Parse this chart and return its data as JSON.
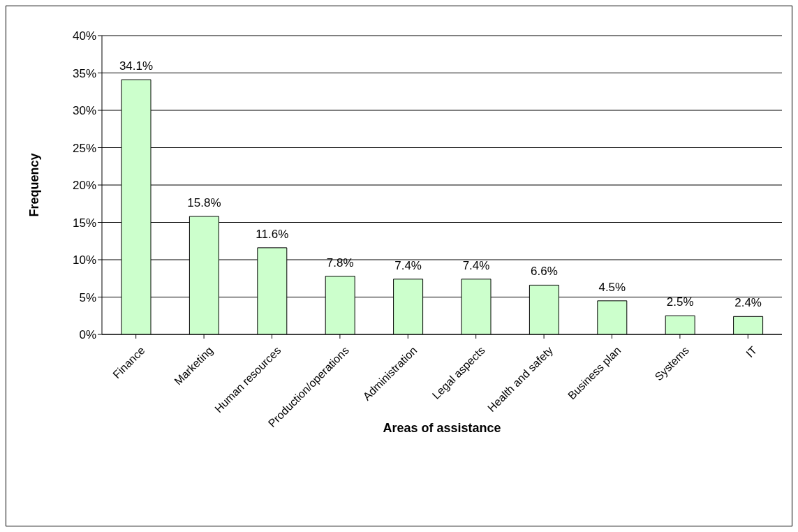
{
  "chart_data": {
    "type": "bar",
    "xlabel": "Areas of assistance",
    "ylabel": "Frequency",
    "categories": [
      "Finance",
      "Marketing",
      "Human resources",
      "Production/operations",
      "Administration",
      "Legal aspects",
      "Health and safety",
      "Business plan",
      "Systems",
      "IT"
    ],
    "values": [
      34.1,
      15.8,
      11.6,
      7.8,
      7.4,
      7.4,
      6.6,
      4.5,
      2.5,
      2.4
    ],
    "value_labels": [
      "34.1%",
      "15.8%",
      "11.6%",
      "7.8%",
      "7.4%",
      "7.4%",
      "6.6%",
      "4.5%",
      "2.5%",
      "2.4%"
    ],
    "color": "#ccffcc",
    "ylim": [
      0,
      40
    ],
    "yticks": [
      {
        "value": 0,
        "label": "0%"
      },
      {
        "value": 5,
        "label": "5%"
      },
      {
        "value": 10,
        "label": "10%"
      },
      {
        "value": 15,
        "label": "15%"
      },
      {
        "value": 20,
        "label": "20%"
      },
      {
        "value": 25,
        "label": "25%"
      },
      {
        "value": 30,
        "label": "30%"
      },
      {
        "value": 35,
        "label": "35%"
      },
      {
        "value": 40,
        "label": "40%"
      }
    ],
    "grid": "y"
  }
}
